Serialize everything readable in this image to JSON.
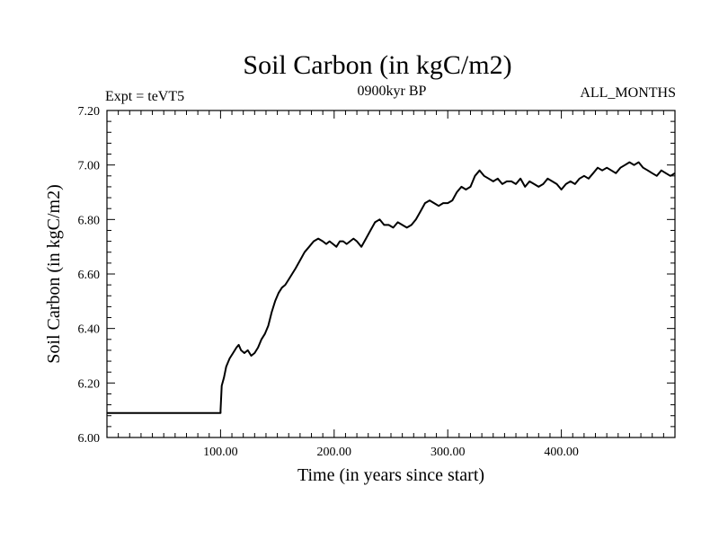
{
  "chart_data": {
    "type": "line",
    "title": "Soil Carbon (in kgC/m2)",
    "header_left": "Expt = teVT5",
    "header_center": "0900kyr BP",
    "header_right": "ALL_MONTHS",
    "xlabel": "Time (in years since start)",
    "ylabel": "Soil Carbon (in kgC/m2)",
    "xlim": [
      0,
      500
    ],
    "ylim": [
      6.0,
      7.2
    ],
    "x_ticks": [
      100,
      200,
      300,
      400
    ],
    "x_tick_labels": [
      "100.00",
      "200.00",
      "300.00",
      "400.00"
    ],
    "y_ticks": [
      6.0,
      6.2,
      6.4,
      6.6,
      6.8,
      7.0,
      7.2
    ],
    "y_tick_labels": [
      "6.00",
      "6.20",
      "6.40",
      "6.60",
      "6.80",
      "7.00",
      "7.20"
    ],
    "grid": false,
    "series": [
      {
        "name": "Soil Carbon",
        "x": [
          0,
          100,
          100,
          101,
          103,
          105,
          108,
          111,
          114,
          116,
          118,
          121,
          124,
          127,
          130,
          133,
          136,
          139,
          142,
          145,
          148,
          151,
          154,
          157,
          160,
          163,
          166,
          170,
          174,
          178,
          182,
          186,
          190,
          193,
          196,
          199,
          202,
          205,
          208,
          211,
          214,
          217,
          220,
          224,
          228,
          232,
          236,
          240,
          244,
          248,
          252,
          256,
          260,
          264,
          268,
          272,
          276,
          280,
          284,
          288,
          292,
          296,
          300,
          304,
          308,
          312,
          316,
          320,
          324,
          328,
          332,
          336,
          340,
          344,
          348,
          352,
          356,
          360,
          364,
          368,
          372,
          376,
          380,
          384,
          388,
          392,
          396,
          400,
          404,
          408,
          412,
          416,
          420,
          424,
          428,
          432,
          436,
          440,
          444,
          448,
          452,
          456,
          460,
          464,
          468,
          472,
          476,
          480,
          484,
          488,
          492,
          496,
          500
        ],
        "values": [
          6.09,
          6.09,
          6.1,
          6.19,
          6.22,
          6.26,
          6.29,
          6.31,
          6.33,
          6.34,
          6.32,
          6.31,
          6.32,
          6.3,
          6.31,
          6.33,
          6.36,
          6.38,
          6.41,
          6.46,
          6.5,
          6.53,
          6.55,
          6.56,
          6.58,
          6.6,
          6.62,
          6.65,
          6.68,
          6.7,
          6.72,
          6.73,
          6.72,
          6.71,
          6.72,
          6.71,
          6.7,
          6.72,
          6.72,
          6.71,
          6.72,
          6.73,
          6.72,
          6.7,
          6.73,
          6.76,
          6.79,
          6.8,
          6.78,
          6.78,
          6.77,
          6.79,
          6.78,
          6.77,
          6.78,
          6.8,
          6.83,
          6.86,
          6.87,
          6.86,
          6.85,
          6.86,
          6.86,
          6.87,
          6.9,
          6.92,
          6.91,
          6.92,
          6.96,
          6.98,
          6.96,
          6.95,
          6.94,
          6.95,
          6.93,
          6.94,
          6.94,
          6.93,
          6.95,
          6.92,
          6.94,
          6.93,
          6.92,
          6.93,
          6.95,
          6.94,
          6.93,
          6.91,
          6.93,
          6.94,
          6.93,
          6.95,
          6.96,
          6.95,
          6.97,
          6.99,
          6.98,
          6.99,
          6.98,
          6.97,
          6.99,
          7.0,
          7.01,
          7.0,
          7.01,
          6.99,
          6.98,
          6.97,
          6.96,
          6.98,
          6.97,
          6.96,
          6.97
        ]
      }
    ]
  }
}
